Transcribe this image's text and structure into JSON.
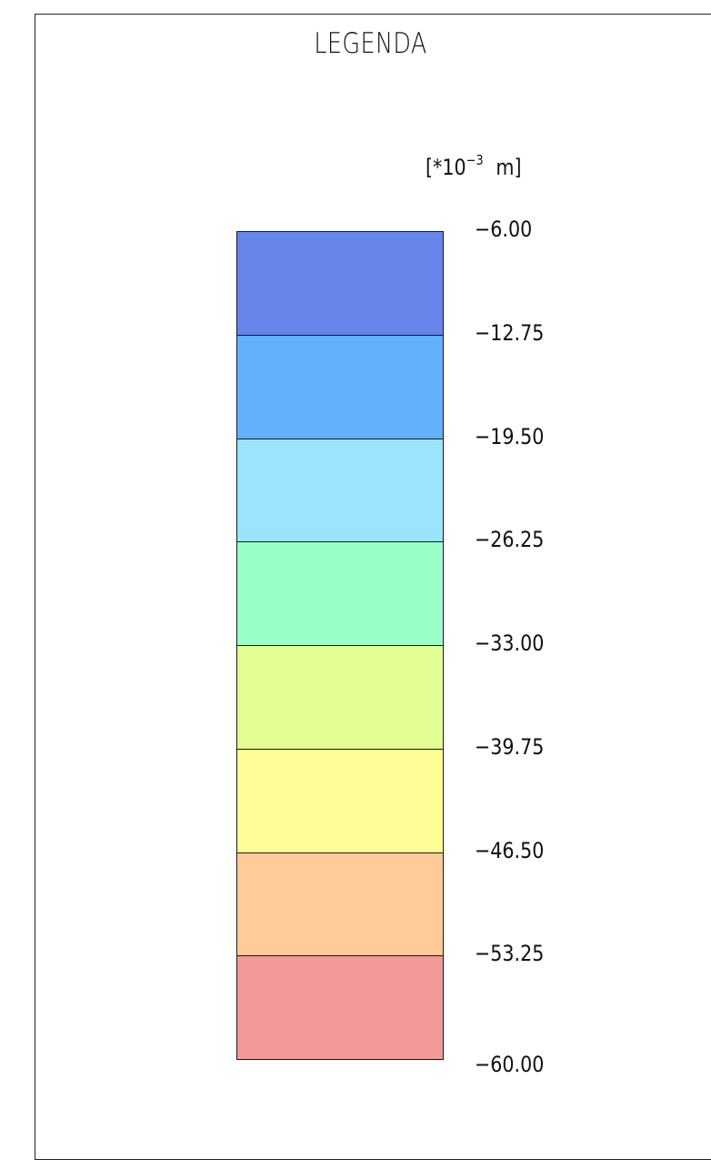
{
  "legend": {
    "title": "LEGENDA",
    "unit": {
      "prefix": "[*10",
      "exponent": "−3",
      "suffix": "m]"
    },
    "values": [
      "−6.00",
      "−12.75",
      "−19.50",
      "−26.25",
      "−33.00",
      "−39.75",
      "−46.50",
      "−53.25",
      "−60.00"
    ],
    "colors": [
      "#6685ea",
      "#63b0fe",
      "#9ae5fd",
      "#99fec8",
      "#e3fe95",
      "#fefe97",
      "#fecb99",
      "#f29999"
    ]
  }
}
